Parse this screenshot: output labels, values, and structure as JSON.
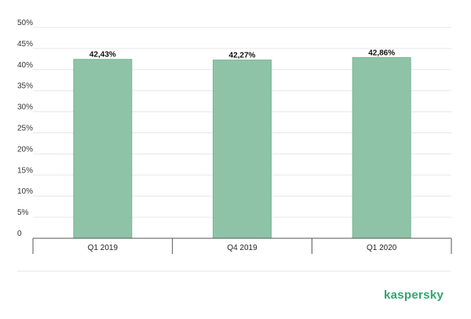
{
  "chart_data": {
    "type": "bar",
    "categories": [
      "Q1 2019",
      "Q4 2019",
      "Q1 2020"
    ],
    "values": [
      42.43,
      42.27,
      42.86
    ],
    "data_labels": [
      "42,43%",
      "42,27%",
      "42,86%"
    ],
    "ylim": [
      0,
      50
    ],
    "yticks": [
      0,
      5,
      10,
      15,
      20,
      25,
      30,
      35,
      40,
      45,
      50
    ],
    "ytick_labels": [
      "0",
      "5%",
      "10%",
      "15%",
      "20%",
      "25%",
      "30%",
      "35%",
      "40%",
      "45%",
      "50%"
    ],
    "grid": true,
    "bar_color": "#8ec3a7",
    "bar_edge_color": "#79b695"
  },
  "brand": {
    "logo_text": "kaspersky",
    "color": "#2ba671"
  }
}
